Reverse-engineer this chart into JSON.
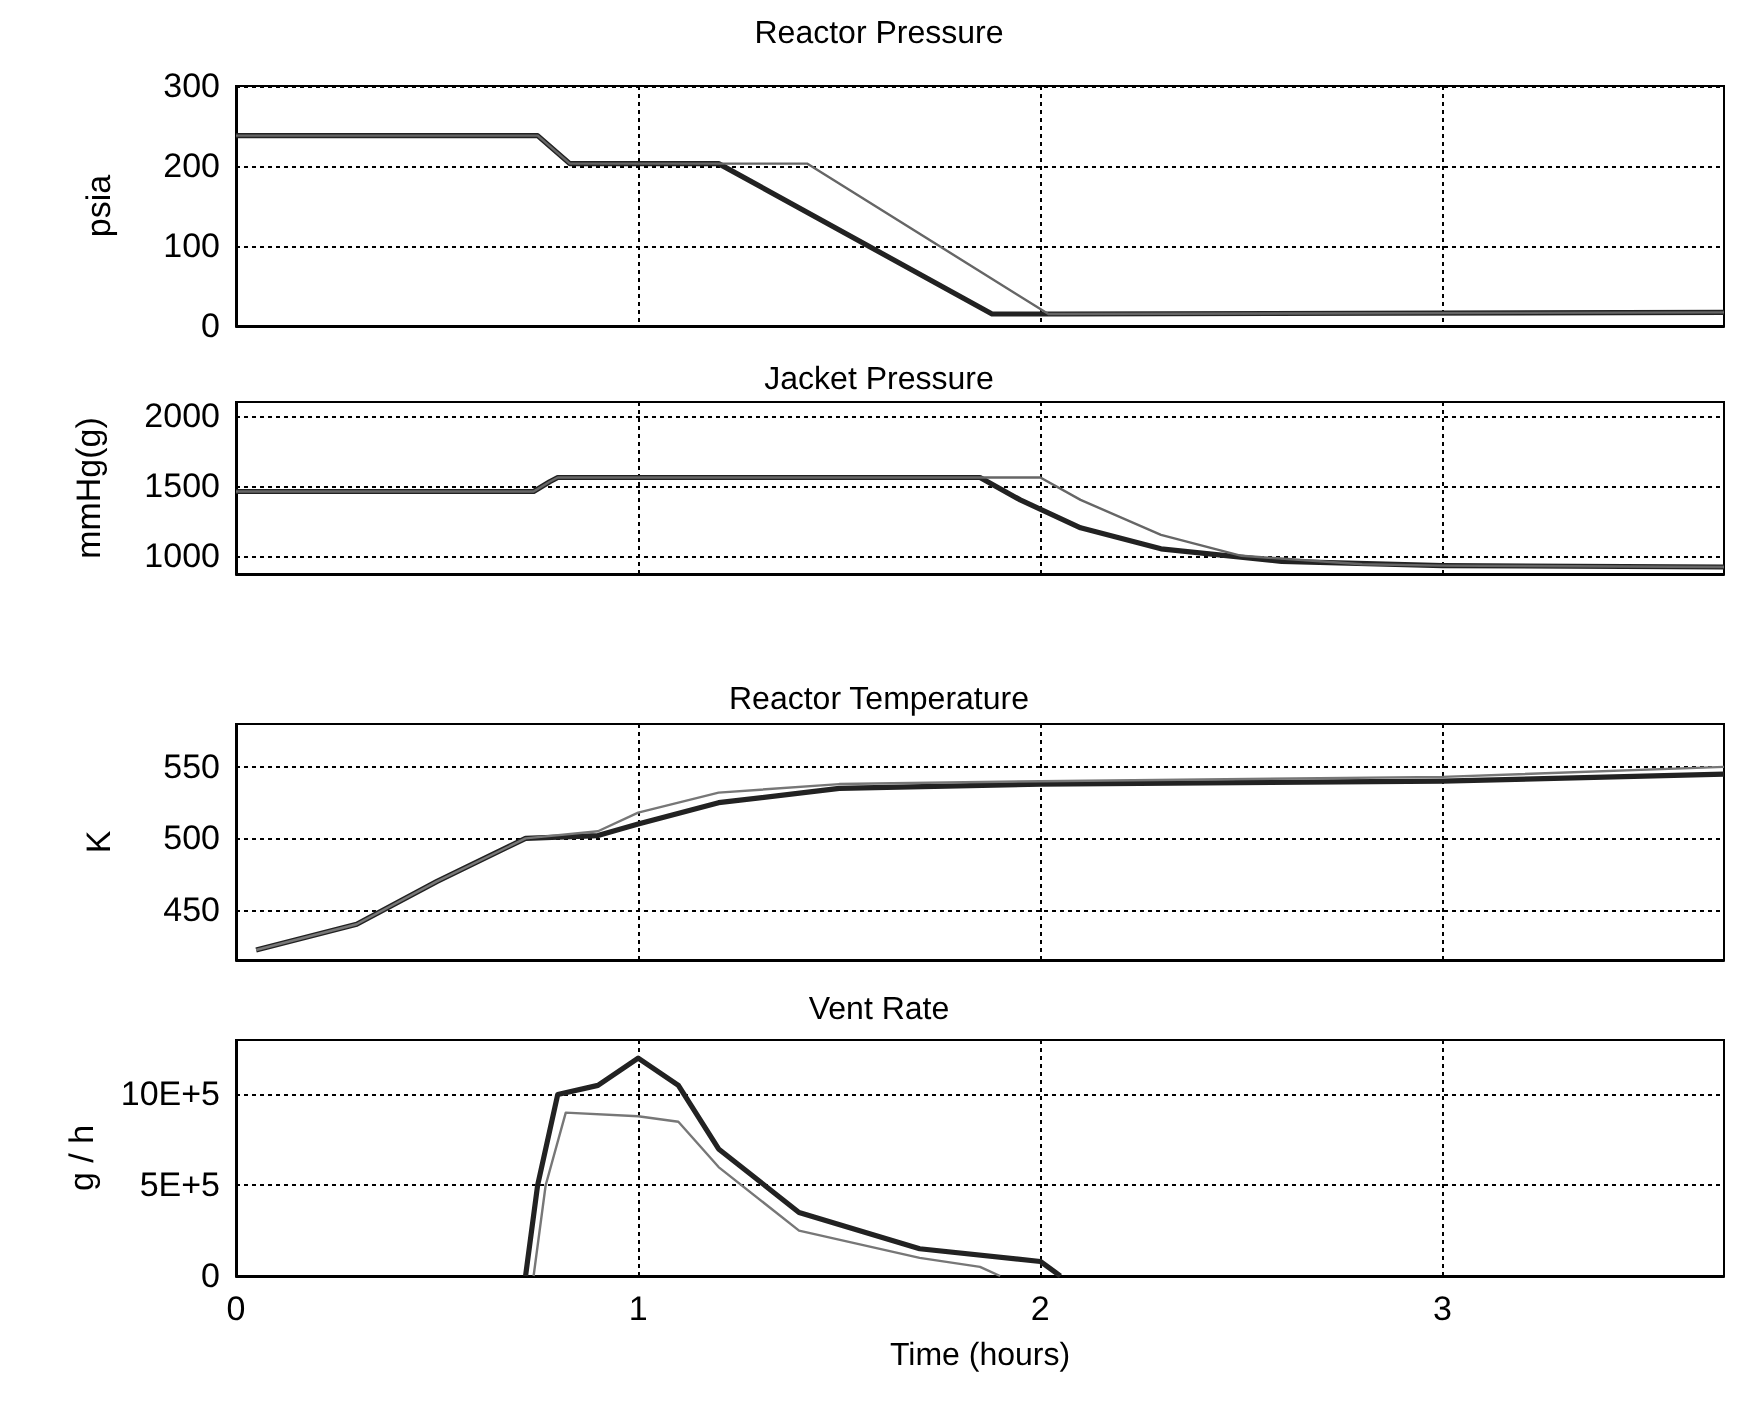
{
  "chart_data": [
    {
      "type": "line",
      "title": "Reactor Pressure",
      "ylabel": "psia",
      "xlim": [
        0,
        3.7
      ],
      "xticks": [
        0,
        1,
        2,
        3
      ],
      "ylim": [
        0,
        300
      ],
      "yticks": [
        0,
        100,
        200,
        300
      ],
      "grid": true,
      "marker": "none",
      "line_style": "solid",
      "tick_labels": "y",
      "series": [
        {
          "color": "#222222",
          "x": [
            0,
            0.75,
            0.83,
            1.2,
            1.88,
            2.05,
            3.7
          ],
          "values": [
            238,
            238,
            203,
            203,
            15,
            15,
            17
          ]
        },
        {
          "color": "#666666",
          "x": [
            0,
            0.75,
            0.83,
            1.42,
            2.02,
            2.05,
            3.7
          ],
          "values": [
            238,
            238,
            203,
            203,
            15,
            15,
            17
          ]
        }
      ]
    },
    {
      "type": "line",
      "title": "Jacket Pressure",
      "ylabel": "mmHg(g)",
      "xlim": [
        0,
        3.7
      ],
      "xticks": [
        0,
        1,
        2,
        3
      ],
      "ylim": [
        870,
        2100
      ],
      "yticks": [
        1000,
        1500,
        2000
      ],
      "grid": true,
      "marker": "none",
      "line_style": "solid",
      "tick_labels": "y",
      "series": [
        {
          "color": "#222222",
          "x": [
            0,
            0.74,
            0.78,
            0.8,
            1.85,
            1.95,
            2.1,
            2.3,
            2.6,
            3.0,
            3.7
          ],
          "values": [
            1460,
            1460,
            1530,
            1560,
            1560,
            1400,
            1200,
            1050,
            960,
            930,
            920
          ]
        },
        {
          "color": "#666666",
          "x": [
            0,
            0.74,
            0.78,
            0.8,
            2.0,
            2.1,
            2.3,
            2.5,
            2.8,
            3.0,
            3.7
          ],
          "values": [
            1460,
            1460,
            1530,
            1560,
            1560,
            1400,
            1150,
            1000,
            940,
            930,
            920
          ]
        }
      ]
    },
    {
      "type": "line",
      "title": "Reactor Temperature",
      "ylabel": "K",
      "xlim": [
        0,
        3.7
      ],
      "xticks": [
        0,
        1,
        2,
        3
      ],
      "ylim": [
        415,
        580
      ],
      "yticks": [
        450,
        500,
        550
      ],
      "grid": true,
      "marker": "none",
      "line_style": "solid",
      "tick_labels": "y",
      "series": [
        {
          "color": "#222222",
          "x": [
            0.05,
            0.3,
            0.5,
            0.72,
            0.9,
            1.0,
            1.2,
            1.5,
            2.0,
            3.0,
            3.7
          ],
          "values": [
            422,
            440,
            470,
            500,
            502,
            510,
            525,
            535,
            538,
            540,
            545
          ]
        },
        {
          "color": "#777777",
          "x": [
            0.05,
            0.3,
            0.5,
            0.72,
            0.9,
            1.0,
            1.2,
            1.5,
            2.0,
            3.0,
            3.7
          ],
          "values": [
            422,
            440,
            470,
            500,
            505,
            518,
            532,
            538,
            540,
            543,
            550
          ]
        }
      ]
    },
    {
      "type": "line",
      "title": "Vent Rate",
      "xlabel": "Time (hours)",
      "ylabel": "g / h",
      "xlim": [
        0,
        3.7
      ],
      "xticks": [
        0,
        1,
        2,
        3
      ],
      "ylim": [
        0,
        1300000
      ],
      "yticks": [
        {
          "value": 0,
          "label": "0"
        },
        {
          "value": 500000,
          "label": "5E+5"
        },
        {
          "value": 1000000,
          "label": "10E+5"
        }
      ],
      "grid": true,
      "marker": "none",
      "line_style": "solid",
      "series": [
        {
          "color": "#222222",
          "x": [
            0.72,
            0.75,
            0.8,
            0.9,
            1.0,
            1.1,
            1.2,
            1.4,
            1.7,
            2.0,
            2.05
          ],
          "values": [
            0,
            500000,
            1000000,
            1050000,
            1200000,
            1050000,
            700000,
            350000,
            150000,
            80000,
            0
          ]
        },
        {
          "color": "#777777",
          "x": [
            0.74,
            0.77,
            0.82,
            1.0,
            1.1,
            1.2,
            1.4,
            1.7,
            1.85,
            1.9
          ],
          "values": [
            0,
            500000,
            900000,
            880000,
            850000,
            600000,
            250000,
            100000,
            50000,
            0
          ]
        }
      ]
    }
  ]
}
